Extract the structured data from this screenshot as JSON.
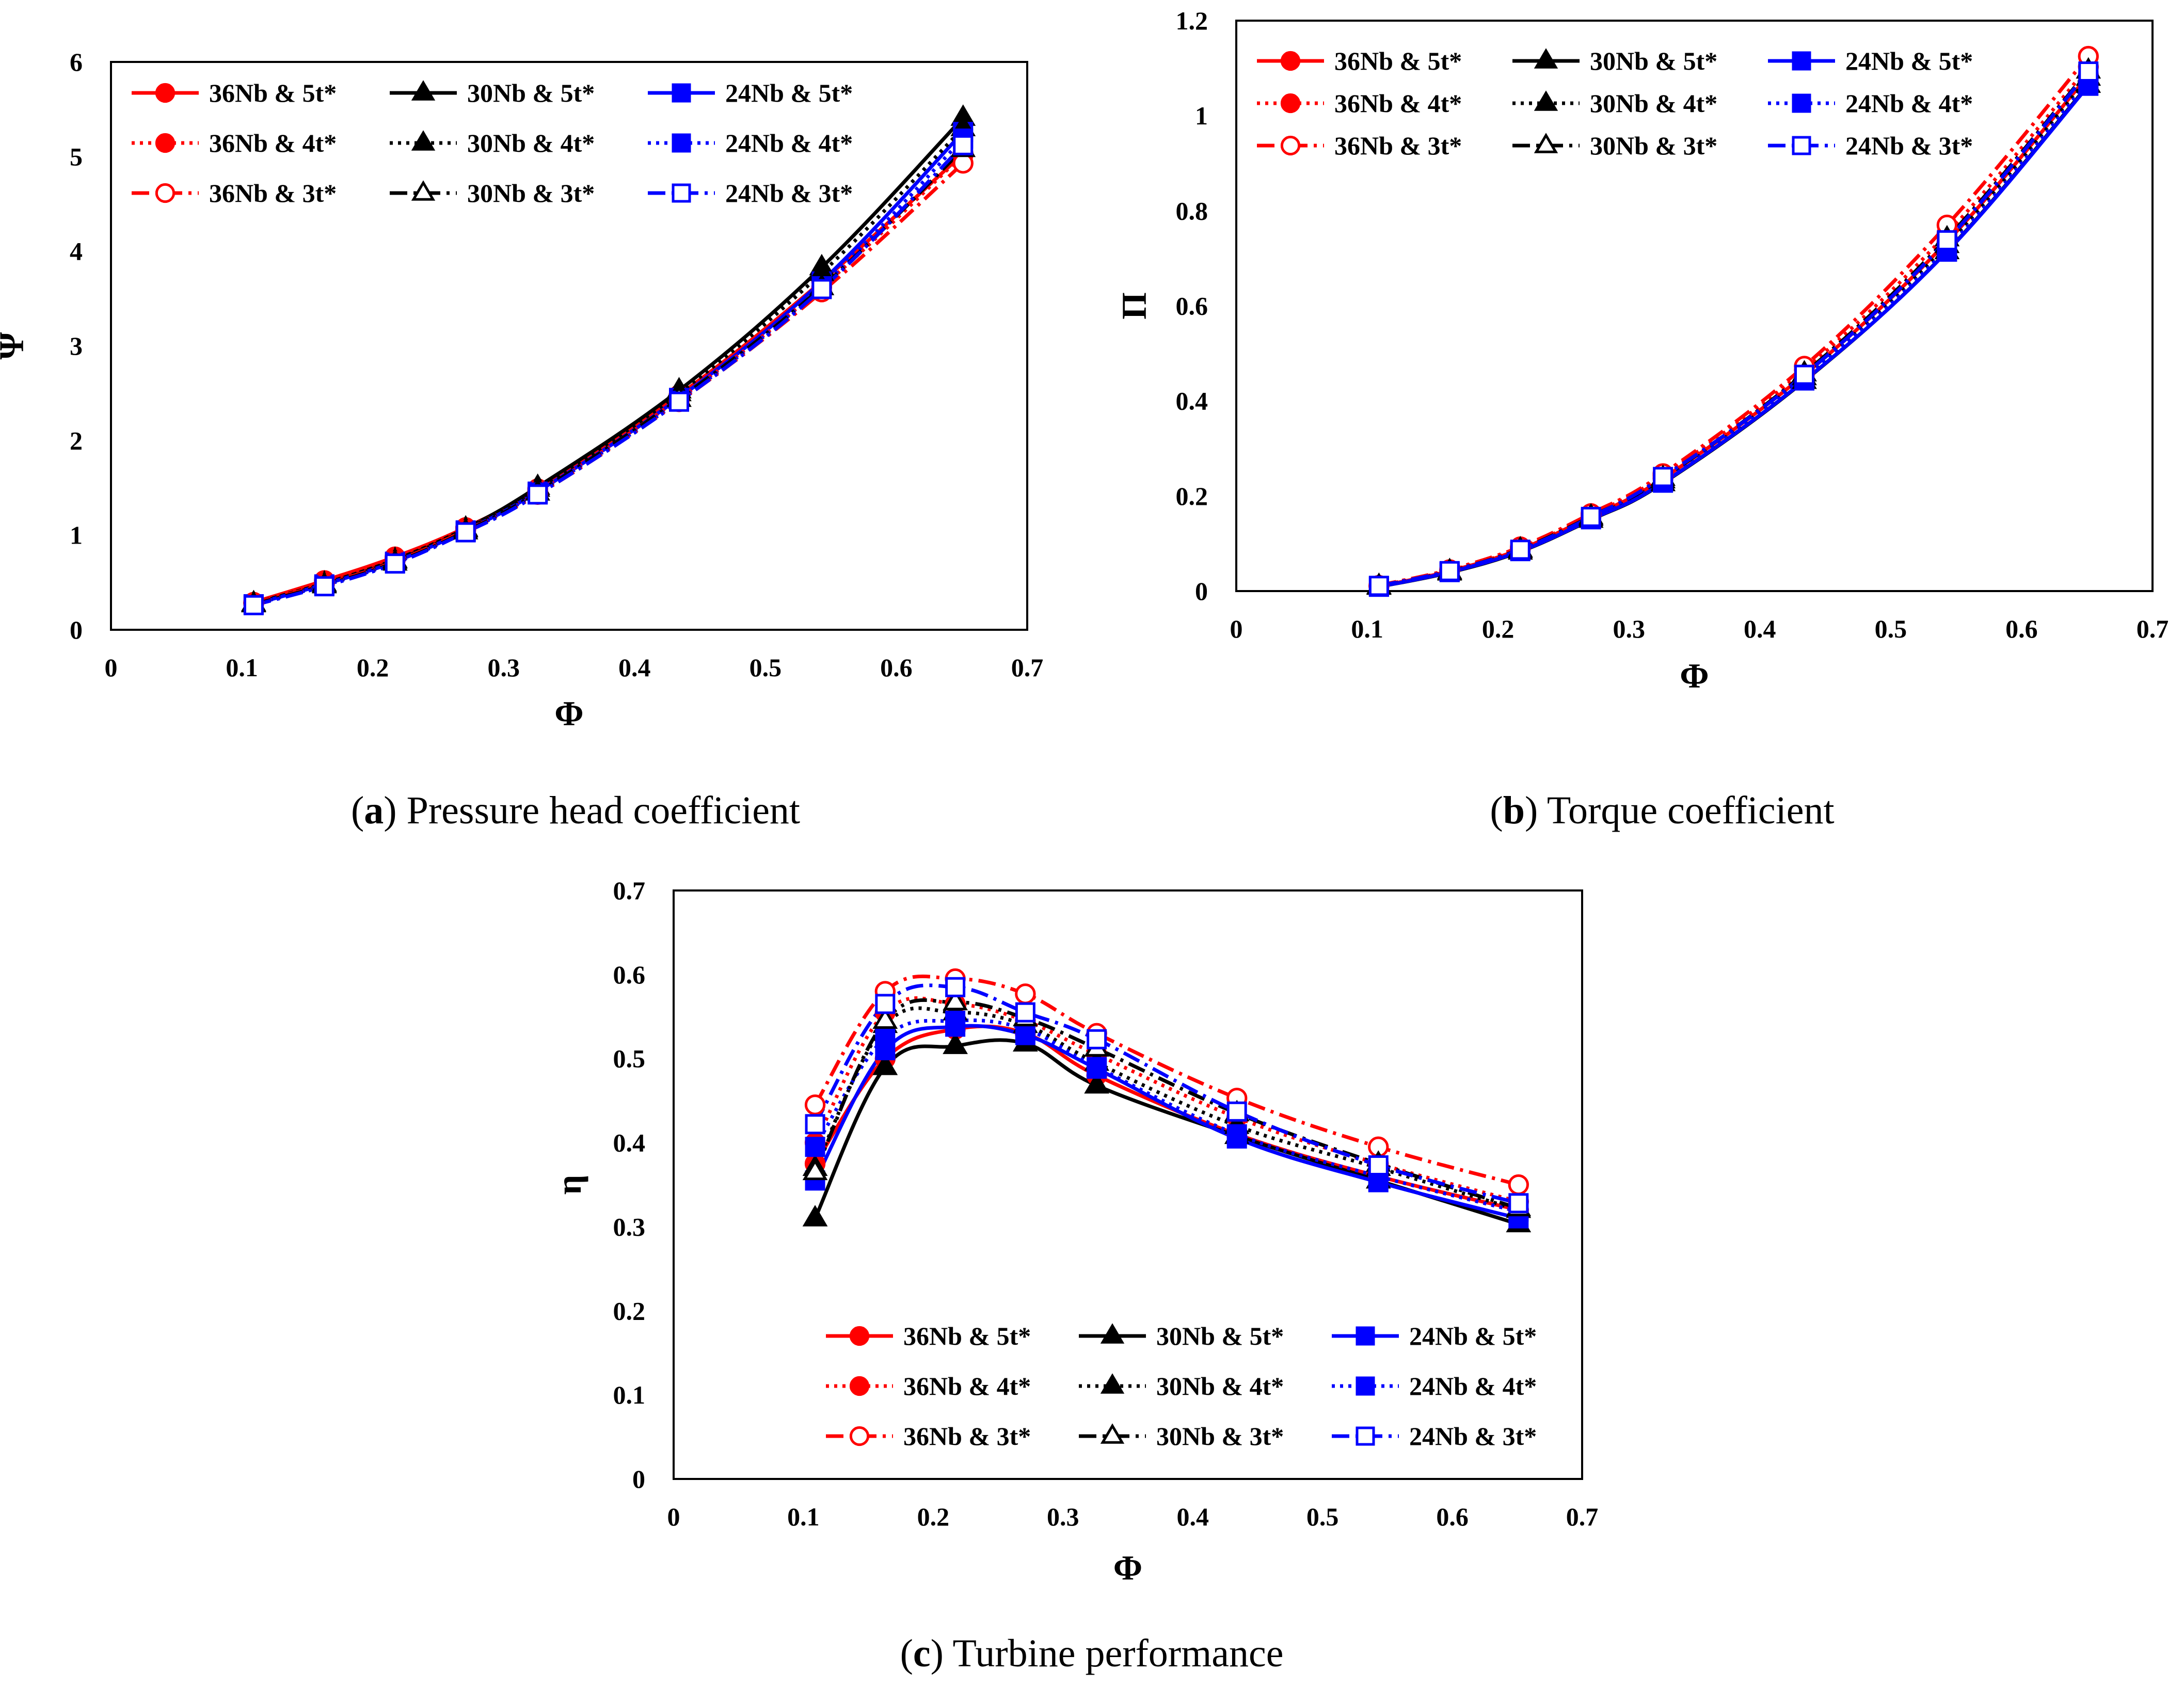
{
  "series_styles": [
    {
      "name": "36Nb & 5t*",
      "color": "#ff0000",
      "dash": "solid",
      "marker": "circle",
      "filled": true
    },
    {
      "name": "30Nb & 5t*",
      "color": "#000000",
      "dash": "solid",
      "marker": "triangle",
      "filled": true
    },
    {
      "name": "24Nb & 5t*",
      "color": "#0000ff",
      "dash": "solid",
      "marker": "square",
      "filled": true
    },
    {
      "name": "36Nb & 4t*",
      "color": "#ff0000",
      "dash": "dot",
      "marker": "circle",
      "filled": true
    },
    {
      "name": "30Nb & 4t*",
      "color": "#000000",
      "dash": "dot",
      "marker": "triangle",
      "filled": true
    },
    {
      "name": "24Nb & 4t*",
      "color": "#0000ff",
      "dash": "dot",
      "marker": "square",
      "filled": true
    },
    {
      "name": "36Nb & 3t*",
      "color": "#ff0000",
      "dash": "dashdot",
      "marker": "circle",
      "filled": false
    },
    {
      "name": "30Nb & 3t*",
      "color": "#000000",
      "dash": "dashdot",
      "marker": "triangle",
      "filled": false
    },
    {
      "name": "24Nb & 3t*",
      "color": "#0000ff",
      "dash": "dashdot",
      "marker": "square",
      "filled": false
    }
  ],
  "captions": {
    "a": {
      "letter": "a",
      "text": "Pressure head coefficient"
    },
    "b": {
      "letter": "b",
      "text": "Torque coefficient"
    },
    "c": {
      "letter": "c",
      "text": "Turbine performance"
    }
  },
  "chart_data": [
    {
      "id": "a",
      "type": "line",
      "title": "",
      "xlabel": "Φ",
      "ylabel": "Ψ",
      "xlim": [
        0,
        0.7
      ],
      "ylim": [
        0,
        6
      ],
      "xticks": [
        "0",
        "0.1",
        "0.2",
        "0.3",
        "0.4",
        "0.5",
        "0.6",
        "0.7"
      ],
      "yticks": [
        "0",
        "1",
        "2",
        "3",
        "4",
        "5",
        "6"
      ],
      "grid": false,
      "legend_position": "top-left",
      "x": [
        0.109,
        0.163,
        0.217,
        0.271,
        0.326,
        0.434,
        0.543,
        0.651
      ],
      "series": [
        {
          "name": "36Nb & 5t*",
          "values": [
            0.29,
            0.52,
            0.77,
            1.08,
            1.49,
            2.48,
            3.68,
            5.03
          ]
        },
        {
          "name": "30Nb & 5t*",
          "values": [
            0.28,
            0.49,
            0.74,
            1.07,
            1.51,
            2.53,
            3.83,
            5.41
          ]
        },
        {
          "name": "24Nb & 5t*",
          "values": [
            0.27,
            0.48,
            0.72,
            1.05,
            1.46,
            2.45,
            3.68,
            5.26
          ]
        },
        {
          "name": "36Nb & 4t*",
          "values": [
            0.28,
            0.5,
            0.75,
            1.07,
            1.47,
            2.44,
            3.62,
            5.02
          ]
        },
        {
          "name": "30Nb & 4t*",
          "values": [
            0.28,
            0.48,
            0.73,
            1.06,
            1.49,
            2.5,
            3.77,
            5.3
          ]
        },
        {
          "name": "24Nb & 4t*",
          "values": [
            0.27,
            0.47,
            0.71,
            1.04,
            1.45,
            2.42,
            3.63,
            5.19
          ]
        },
        {
          "name": "36Nb & 3t*",
          "values": [
            0.28,
            0.48,
            0.72,
            1.05,
            1.43,
            2.41,
            3.57,
            4.93
          ]
        },
        {
          "name": "30Nb & 3t*",
          "values": [
            0.27,
            0.47,
            0.71,
            1.04,
            1.45,
            2.44,
            3.62,
            5.08
          ]
        },
        {
          "name": "24Nb & 3t*",
          "values": [
            0.26,
            0.46,
            0.7,
            1.03,
            1.43,
            2.41,
            3.6,
            5.12
          ]
        }
      ]
    },
    {
      "id": "b",
      "type": "line",
      "title": "",
      "xlabel": "Φ",
      "ylabel": "Π",
      "xlim": [
        0,
        0.7
      ],
      "ylim": [
        0,
        1.2
      ],
      "xticks": [
        "0",
        "0.1",
        "0.2",
        "0.3",
        "0.4",
        "0.5",
        "0.6",
        "0.7"
      ],
      "yticks": [
        "0",
        "0.2",
        "0.4",
        "0.6",
        "0.8",
        "1",
        "1.2"
      ],
      "grid": false,
      "legend_position": "top-left",
      "x": [
        0.109,
        0.163,
        0.217,
        0.271,
        0.326,
        0.434,
        0.543,
        0.651
      ],
      "series": [
        {
          "name": "36Nb & 5t*",
          "values": [
            0.01,
            0.042,
            0.088,
            0.157,
            0.237,
            0.455,
            0.735,
            1.085
          ]
        },
        {
          "name": "30Nb & 5t*",
          "values": [
            0.009,
            0.039,
            0.083,
            0.15,
            0.227,
            0.442,
            0.715,
            1.065
          ]
        },
        {
          "name": "24Nb & 5t*",
          "values": [
            0.009,
            0.04,
            0.084,
            0.151,
            0.228,
            0.443,
            0.714,
            1.063
          ]
        },
        {
          "name": "36Nb & 4t*",
          "values": [
            0.011,
            0.043,
            0.09,
            0.16,
            0.243,
            0.465,
            0.752,
            1.103
          ]
        },
        {
          "name": "30Nb & 4t*",
          "values": [
            0.01,
            0.041,
            0.086,
            0.154,
            0.233,
            0.45,
            0.728,
            1.08
          ]
        },
        {
          "name": "24Nb & 4t*",
          "values": [
            0.01,
            0.04,
            0.085,
            0.153,
            0.231,
            0.447,
            0.72,
            1.072
          ]
        },
        {
          "name": "36Nb & 3t*",
          "values": [
            0.012,
            0.045,
            0.093,
            0.163,
            0.247,
            0.473,
            0.77,
            1.125
          ]
        },
        {
          "name": "30Nb & 3t*",
          "values": [
            0.011,
            0.042,
            0.088,
            0.157,
            0.238,
            0.458,
            0.742,
            1.095
          ]
        },
        {
          "name": "24Nb & 3t*",
          "values": [
            0.011,
            0.042,
            0.087,
            0.156,
            0.24,
            0.455,
            0.738,
            1.093
          ]
        }
      ]
    },
    {
      "id": "c",
      "type": "line",
      "title": "",
      "xlabel": "Φ",
      "ylabel": "η",
      "xlim": [
        0,
        0.7
      ],
      "ylim": [
        0,
        0.7
      ],
      "xticks": [
        "0",
        "0.1",
        "0.2",
        "0.3",
        "0.4",
        "0.5",
        "0.6",
        "0.7"
      ],
      "yticks": [
        "0",
        "0.1",
        "0.2",
        "0.3",
        "0.4",
        "0.5",
        "0.6",
        "0.7"
      ],
      "grid": false,
      "legend_position": "bottom-right",
      "x": [
        0.109,
        0.163,
        0.217,
        0.271,
        0.326,
        0.434,
        0.543,
        0.651
      ],
      "series": [
        {
          "name": "36Nb & 5t*",
          "values": [
            0.375,
            0.5,
            0.535,
            0.53,
            0.48,
            0.41,
            0.36,
            0.32
          ]
        },
        {
          "name": "30Nb & 5t*",
          "values": [
            0.31,
            0.49,
            0.515,
            0.518,
            0.468,
            0.408,
            0.355,
            0.303
          ]
        },
        {
          "name": "24Nb & 5t*",
          "values": [
            0.355,
            0.51,
            0.538,
            0.528,
            0.488,
            0.405,
            0.353,
            0.31
          ]
        },
        {
          "name": "36Nb & 4t*",
          "values": [
            0.4,
            0.555,
            0.565,
            0.545,
            0.505,
            0.43,
            0.375,
            0.33
          ]
        },
        {
          "name": "30Nb & 4t*",
          "values": [
            0.37,
            0.54,
            0.555,
            0.54,
            0.495,
            0.42,
            0.37,
            0.32
          ]
        },
        {
          "name": "24Nb & 4t*",
          "values": [
            0.395,
            0.525,
            0.545,
            0.535,
            0.49,
            0.41,
            0.36,
            0.318
          ]
        },
        {
          "name": "36Nb & 3t*",
          "values": [
            0.445,
            0.58,
            0.595,
            0.577,
            0.53,
            0.453,
            0.395,
            0.35
          ]
        },
        {
          "name": "30Nb & 3t*",
          "values": [
            0.365,
            0.545,
            0.567,
            0.548,
            0.512,
            0.435,
            0.375,
            0.322
          ]
        },
        {
          "name": "24Nb & 3t*",
          "values": [
            0.422,
            0.565,
            0.585,
            0.555,
            0.523,
            0.437,
            0.373,
            0.328
          ]
        }
      ]
    }
  ]
}
